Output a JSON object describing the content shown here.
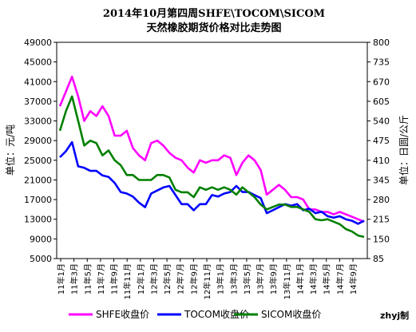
{
  "chart_data": {
    "type": "line",
    "title": "2014年10月第四周SHFE\\TOCOM\\SICOM",
    "subtitle": "天然橡胶期货价格对比走势图",
    "ylabel_left": "单位：元/吨",
    "ylabel_right": "单位：日圆/公斤",
    "ylim_left": [
      5000,
      49000
    ],
    "ylim_right": [
      85,
      800
    ],
    "yticks_left": [
      "49000",
      "45000",
      "41000",
      "37000",
      "33000",
      "29000",
      "25000",
      "21000",
      "17000",
      "13000",
      "9000",
      "5000"
    ],
    "yticks_right": [
      "800",
      "735",
      "670",
      "605",
      "540",
      "475",
      "410",
      "345",
      "280",
      "215",
      "150",
      "85"
    ],
    "xticks": [
      "11年1月",
      "11年3月",
      "11年5月",
      "11年7月",
      "11年9月",
      "11年11月",
      "12年1月",
      "12年3月",
      "12年5月",
      "12年7月",
      "12年9月",
      "12年11月",
      "13年1月",
      "13年3月",
      "13年5月",
      "13年7月",
      "13年9月",
      "13年11月",
      "14年1月",
      "14年3月",
      "14年5月",
      "14年7月",
      "14年9月"
    ],
    "grid": false,
    "legend_position": "bottom",
    "credit": "zhyj制",
    "series": [
      {
        "name": "SHFE收盘价",
        "axis": "left",
        "color": "#ff00ff",
        "values": [
          36000,
          39000,
          42000,
          38000,
          33000,
          35000,
          34000,
          36000,
          34000,
          30000,
          30000,
          31000,
          27500,
          26000,
          25000,
          28500,
          29000,
          28000,
          26500,
          25500,
          25000,
          23500,
          22500,
          25000,
          24500,
          25000,
          25000,
          26000,
          25500,
          22000,
          24500,
          26000,
          25000,
          23000,
          18000,
          19000,
          20000,
          19000,
          17500,
          17500,
          17000,
          15000,
          15000,
          14500,
          14500,
          14000,
          14500,
          14000,
          13500,
          13000,
          12500
        ]
      },
      {
        "name": "TOCOM收盘价",
        "axis": "right",
        "color": "#0000ff",
        "values": [
          420,
          440,
          470,
          390,
          385,
          375,
          375,
          360,
          355,
          335,
          305,
          300,
          290,
          270,
          255,
          300,
          310,
          320,
          325,
          295,
          265,
          265,
          245,
          265,
          265,
          295,
          290,
          300,
          305,
          325,
          305,
          305,
          295,
          285,
          235,
          245,
          255,
          265,
          260,
          265,
          245,
          250,
          235,
          240,
          225,
          220,
          225,
          215,
          210,
          200,
          210
        ]
      },
      {
        "name": "SICOM收盘价",
        "axis": "left",
        "color": "#008000",
        "values": [
          31000,
          35000,
          38000,
          33000,
          28000,
          29000,
          28500,
          26000,
          27000,
          25000,
          24000,
          22000,
          22000,
          21000,
          21000,
          21000,
          22000,
          22000,
          21500,
          19000,
          18500,
          18500,
          17500,
          19500,
          19000,
          19500,
          19000,
          19500,
          19000,
          18000,
          19500,
          18500,
          17500,
          16000,
          15000,
          15500,
          16000,
          16000,
          15500,
          15500,
          15000,
          14500,
          13000,
          12800,
          13000,
          12500,
          12000,
          11000,
          10500,
          9700,
          9400
        ]
      }
    ]
  }
}
